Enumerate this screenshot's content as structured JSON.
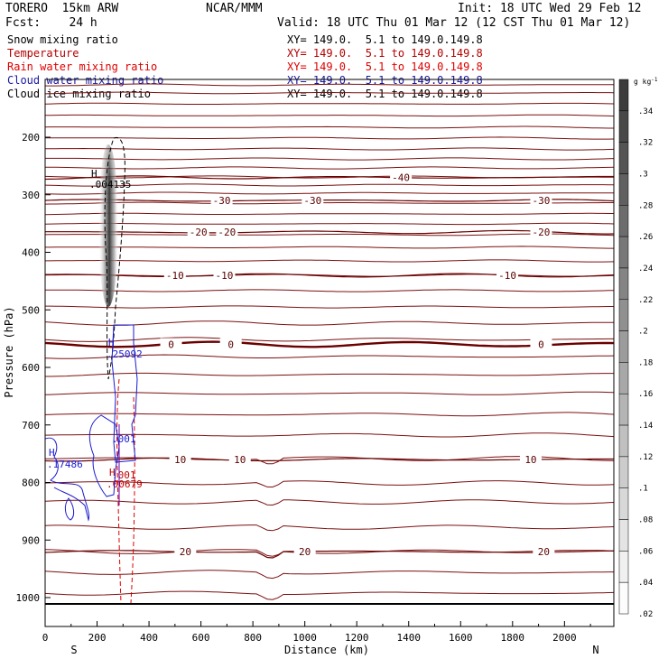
{
  "header": {
    "model": "TORERO  15km ARW",
    "center": "NCAR/MMM",
    "init": "Init: 18 UTC Wed 29 Feb 12",
    "fcst": "Fcst:    24 h",
    "valid": "Valid: 18 UTC Thu 01 Mar 12 (12 CST Thu 01 Mar 12)"
  },
  "fields": [
    {
      "name": "Snow mixing ratio",
      "xy": "XY= 149.0.  5.1 to 149.0.149.8",
      "color": "#000000"
    },
    {
      "name": "Temperature",
      "xy": "XY= 149.0.  5.1 to 149.0.149.8",
      "color": "#b40000"
    },
    {
      "name": "Rain water mixing ratio",
      "xy": "XY= 149.0.  5.1 to 149.0.149.8",
      "color": "#e00000"
    },
    {
      "name": "Cloud water mixing ratio",
      "xy": "XY= 149.0.  5.1 to 149.0.149.8",
      "color": "#1a1aa0"
    },
    {
      "name": "Cloud ice mixing ratio",
      "xy": "XY= 149.0.  5.1 to 149.0.149.8",
      "color": "#000000"
    }
  ],
  "chart_data": {
    "type": "cross-section",
    "xlabel": "Distance (km)",
    "ylabel": "Pressure (hPa)",
    "xlim": [
      0,
      2190
    ],
    "ylim": [
      1030,
      100
    ],
    "x_ticks": [
      0,
      200,
      400,
      600,
      800,
      1000,
      1200,
      1400,
      1600,
      1800,
      2000
    ],
    "y_ticks": [
      200,
      300,
      400,
      500,
      600,
      700,
      800,
      900,
      1000
    ],
    "left_end": "S",
    "right_end": "N",
    "temperature_isotherms": [
      {
        "label": "-40",
        "p": 270,
        "label_x": [
          1370
        ]
      },
      {
        "label": "-30",
        "p": 310,
        "label_x": [
          680,
          1030,
          1910
        ]
      },
      {
        "label": "-20",
        "p": 365,
        "label_x": [
          590,
          700,
          1910
        ]
      },
      {
        "label": "-10",
        "p": 440,
        "label_x": [
          500,
          690,
          1780
        ]
      },
      {
        "label": "0",
        "p": 560,
        "label_x": [
          485,
          715,
          1910
        ]
      },
      {
        "label": "10",
        "p": 760,
        "label_x": [
          520,
          750,
          1870
        ]
      },
      {
        "label": "20",
        "p": 920,
        "label_x": [
          540,
          1000,
          1920
        ]
      }
    ],
    "snow_max": {
      "label": "H",
      "value": ".004135",
      "x": 240,
      "p": 240
    },
    "cloud_water_max": {
      "label": "H",
      "value": ".25092",
      "x": 255,
      "p": 565
    },
    "cloud_water_min": {
      "label": "H",
      "value": ".17486",
      "x": 30,
      "p": 750
    },
    "cloud_water_contour": ".001",
    "rain_max": {
      "label": "H",
      "value": ".00679",
      "x": 290,
      "p": 820
    },
    "rain_contour": ".001",
    "colorbar": {
      "unit": "g kg-1",
      "unit_text": "g kg",
      "unit_sup": "-1",
      "ticks": [
        ".34",
        ".32",
        ".3",
        ".28",
        ".26",
        ".24",
        ".22",
        ".2",
        ".18",
        ".16",
        ".14",
        ".12",
        ".1",
        ".08",
        ".06",
        ".04",
        ".02"
      ]
    }
  }
}
